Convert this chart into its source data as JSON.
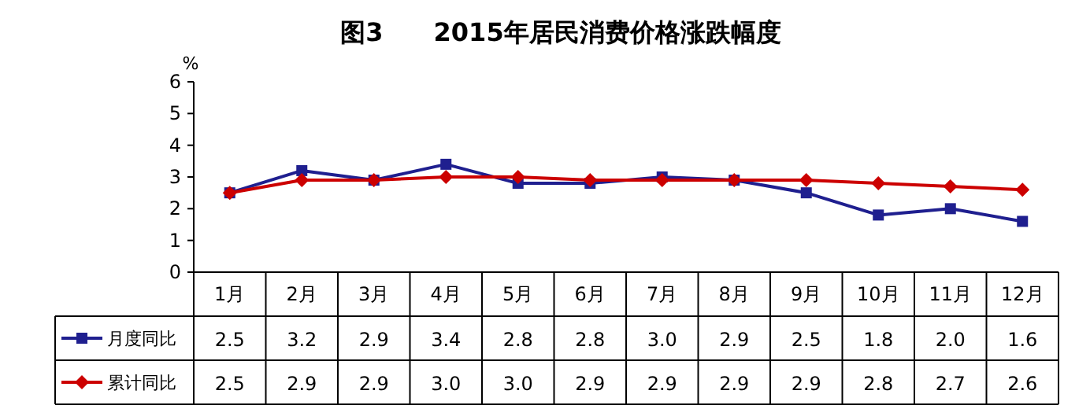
{
  "chart_data": {
    "type": "line",
    "title": "图3　　2015年居民消费价格涨跌幅度",
    "ylabel": "%",
    "categories": [
      "1月",
      "2月",
      "3月",
      "4月",
      "5月",
      "6月",
      "7月",
      "8月",
      "9月",
      "10月",
      "11月",
      "12月"
    ],
    "series": [
      {
        "name": "月度同比",
        "color": "#1f1f8f",
        "marker": "square",
        "values": [
          2.5,
          3.2,
          2.9,
          3.4,
          2.8,
          2.8,
          3.0,
          2.9,
          2.5,
          1.8,
          2.0,
          1.6
        ],
        "value_labels": [
          "2.5",
          "3.2",
          "2.9",
          "3.4",
          "2.8",
          "2.8",
          "3.0",
          "2.9",
          "2.5",
          "1.8",
          "2.0",
          "1.6"
        ]
      },
      {
        "name": "累计同比",
        "color": "#cc0000",
        "marker": "diamond",
        "values": [
          2.5,
          2.9,
          2.9,
          3.0,
          3.0,
          2.9,
          2.9,
          2.9,
          2.9,
          2.8,
          2.7,
          2.6
        ],
        "value_labels": [
          "2.5",
          "2.9",
          "2.9",
          "3.0",
          "3.0",
          "2.9",
          "2.9",
          "2.9",
          "2.9",
          "2.8",
          "2.7",
          "2.6"
        ]
      }
    ],
    "ylim": [
      0,
      6
    ],
    "yticks": [
      0,
      1,
      2,
      3,
      4,
      5,
      6
    ],
    "grid": false,
    "legend": "bottom left"
  }
}
